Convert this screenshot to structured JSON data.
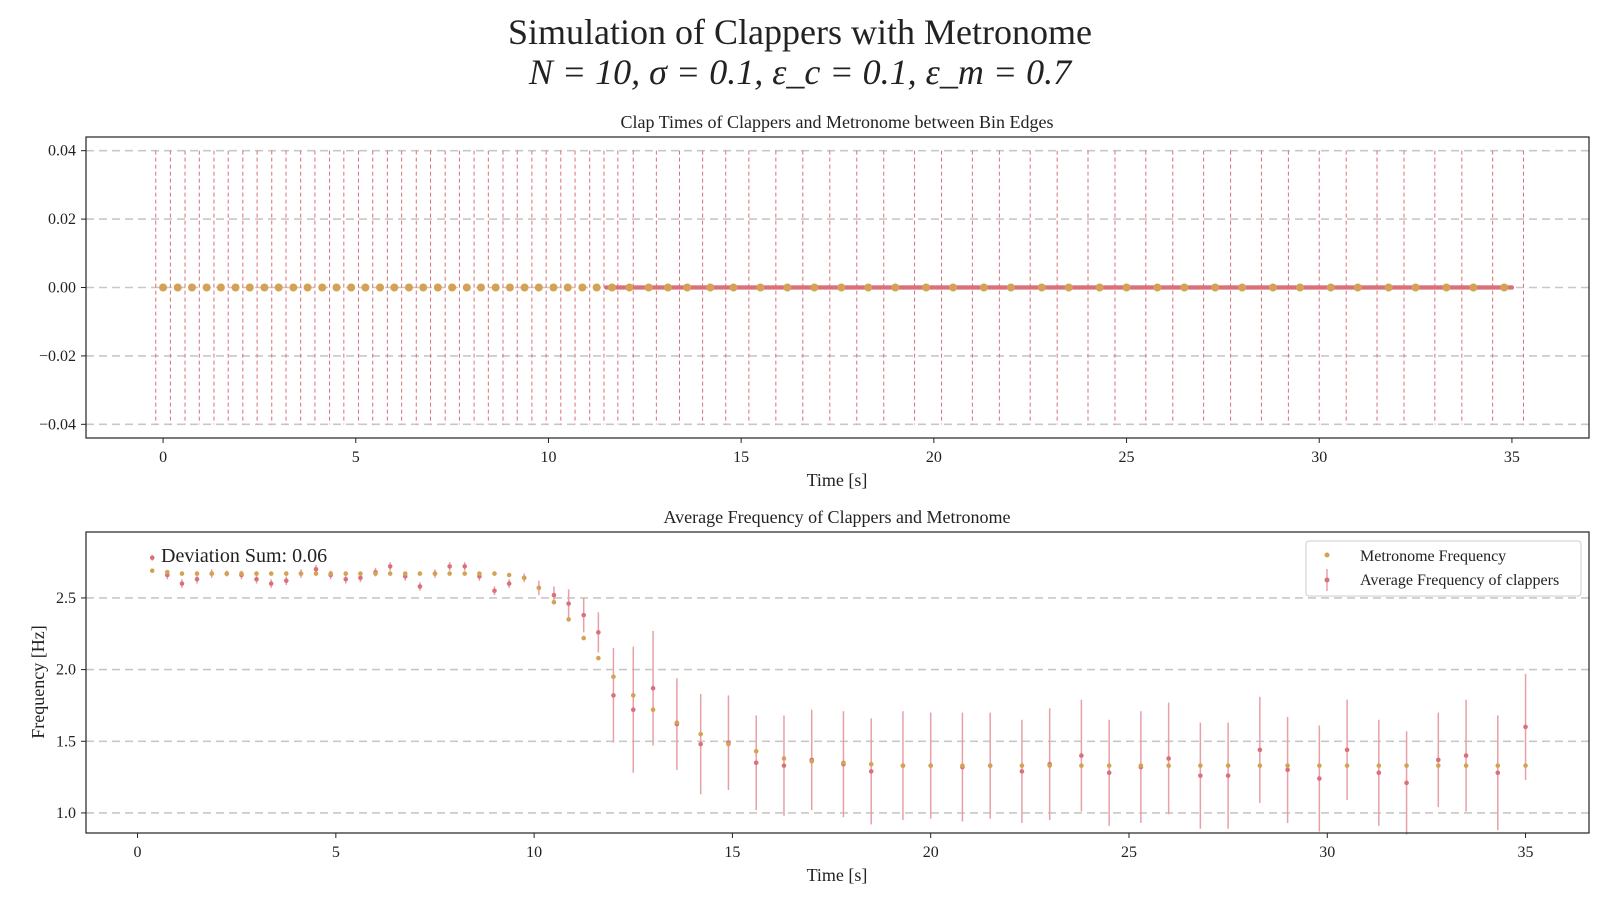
{
  "figure": {
    "title_line1": "Simulation of Clappers with Metronome",
    "title_line2": "N = 10, σ = 0.1, ε_c = 0.1, ε_m = 0.7"
  },
  "colors": {
    "metronome": "#d4a254",
    "clappers": "#d9707a",
    "bin_edge": "#d9707a",
    "grid": "#c8c8c8",
    "axis": "#222222"
  },
  "chart_data": [
    {
      "type": "scatter",
      "title": "Clap Times of Clappers and Metronome between Bin Edges",
      "xlabel": "Time [s]",
      "ylabel": "",
      "xlim": [
        -2,
        37
      ],
      "ylim": [
        -0.044,
        0.044
      ],
      "xticks": [
        0,
        5,
        10,
        15,
        20,
        25,
        30,
        35
      ],
      "yticks": [
        -0.04,
        -0.02,
        0.0,
        0.02,
        0.04
      ],
      "ytick_labels": [
        "−0.04",
        "−0.02",
        "0.00",
        "0.02",
        "0.04"
      ],
      "grid": "y-dashed",
      "bin_edges": [
        -0.19,
        0.19,
        0.57,
        0.94,
        1.32,
        1.69,
        2.07,
        2.44,
        2.82,
        3.19,
        3.57,
        3.94,
        4.32,
        4.69,
        5.07,
        5.44,
        5.82,
        6.19,
        6.57,
        6.94,
        7.32,
        7.69,
        8.07,
        8.44,
        8.82,
        9.19,
        9.57,
        9.94,
        10.32,
        10.69,
        11.07,
        11.44,
        11.8,
        12.2,
        12.8,
        13.4,
        14.0,
        14.6,
        15.2,
        15.9,
        16.6,
        17.3,
        18.0,
        18.7,
        19.5,
        20.2,
        21.0,
        21.7,
        22.5,
        23.2,
        24.0,
        24.7,
        25.5,
        26.2,
        27.0,
        27.7,
        28.5,
        29.2,
        30.0,
        30.7,
        31.5,
        32.2,
        33.0,
        33.7,
        34.5,
        35.3
      ],
      "series": [
        {
          "role": "metronome",
          "y": 0,
          "x": [
            0,
            0.38,
            0.75,
            1.13,
            1.5,
            1.88,
            2.25,
            2.63,
            3.0,
            3.38,
            3.75,
            4.13,
            4.5,
            4.88,
            5.25,
            5.63,
            6.0,
            6.38,
            6.75,
            7.13,
            7.5,
            7.88,
            8.25,
            8.63,
            9.0,
            9.38,
            9.75,
            10.13,
            10.5,
            10.88,
            11.25,
            11.65,
            12.1,
            12.6,
            13.1,
            13.6,
            14.2,
            14.8,
            15.5,
            16.2,
            16.9,
            17.6,
            18.3,
            19.0,
            19.8,
            20.5,
            21.3,
            22.0,
            22.8,
            23.5,
            24.3,
            25.0,
            25.8,
            26.5,
            27.3,
            28.0,
            28.8,
            29.5,
            30.3,
            31.0,
            31.8,
            32.5,
            33.3,
            34.0,
            34.8
          ]
        },
        {
          "role": "clappers",
          "y": 0,
          "x_range": [
            11.5,
            35.0
          ],
          "note_count": 470
        }
      ]
    },
    {
      "type": "errorbar",
      "title": "Average Frequency of Clappers and Metronome",
      "xlabel": "Time [s]",
      "ylabel": "Frequency [Hz]",
      "xlim": [
        -1.3,
        36.6
      ],
      "ylim": [
        0.86,
        2.96
      ],
      "xticks": [
        0,
        5,
        10,
        15,
        20,
        25,
        30,
        35
      ],
      "yticks": [
        1.0,
        1.5,
        2.0,
        2.5
      ],
      "ytick_labels": [
        "1.0",
        "1.5",
        "2.0",
        "2.5"
      ],
      "grid": "y-dashed",
      "legend_position": "top-right",
      "annotation": "Deviation Sum: 0.06",
      "x": [
        0.37,
        0.75,
        1.12,
        1.5,
        1.87,
        2.25,
        2.62,
        3.0,
        3.37,
        3.75,
        4.12,
        4.5,
        4.87,
        5.25,
        5.62,
        6.0,
        6.37,
        6.75,
        7.12,
        7.5,
        7.87,
        8.25,
        8.62,
        9.0,
        9.37,
        9.75,
        10.12,
        10.5,
        10.87,
        11.25,
        11.62,
        12.0,
        12.5,
        13.0,
        13.6,
        14.2,
        14.9,
        15.6,
        16.3,
        17.0,
        17.8,
        18.5,
        19.3,
        20.0,
        20.8,
        21.5,
        22.3,
        23.0,
        23.8,
        24.5,
        25.3,
        26.0,
        26.8,
        27.5,
        28.3,
        29.0,
        29.8,
        30.5,
        31.3,
        32.0,
        32.8,
        33.5,
        34.3,
        35.0
      ],
      "series": [
        {
          "name": "Metronome Frequency",
          "values": [
            2.69,
            2.68,
            2.67,
            2.67,
            2.67,
            2.67,
            2.67,
            2.67,
            2.67,
            2.67,
            2.67,
            2.67,
            2.67,
            2.67,
            2.67,
            2.67,
            2.67,
            2.67,
            2.67,
            2.67,
            2.67,
            2.67,
            2.67,
            2.67,
            2.66,
            2.64,
            2.57,
            2.47,
            2.35,
            2.22,
            2.08,
            1.95,
            1.82,
            1.72,
            1.63,
            1.55,
            1.48,
            1.43,
            1.38,
            1.36,
            1.35,
            1.34,
            1.33,
            1.33,
            1.33,
            1.33,
            1.33,
            1.33,
            1.33,
            1.33,
            1.33,
            1.33,
            1.33,
            1.33,
            1.33,
            1.33,
            1.33,
            1.33,
            1.33,
            1.33,
            1.33,
            1.33,
            1.33,
            1.33
          ]
        },
        {
          "name": "Average Frequency of clappers",
          "values": [
            2.78,
            2.66,
            2.6,
            2.63,
            2.67,
            2.67,
            2.66,
            2.63,
            2.6,
            2.62,
            2.67,
            2.7,
            2.66,
            2.63,
            2.64,
            2.68,
            2.72,
            2.65,
            2.58,
            2.67,
            2.72,
            2.72,
            2.65,
            2.55,
            2.6,
            2.64,
            2.57,
            2.52,
            2.46,
            2.38,
            2.26,
            1.82,
            1.72,
            1.87,
            1.62,
            1.48,
            1.49,
            1.35,
            1.33,
            1.37,
            1.34,
            1.29,
            1.33,
            1.33,
            1.32,
            1.33,
            1.29,
            1.34,
            1.4,
            1.28,
            1.32,
            1.38,
            1.26,
            1.26,
            1.44,
            1.3,
            1.24,
            1.44,
            1.28,
            1.21,
            1.37,
            1.4,
            1.28,
            1.6
          ],
          "yerr": [
            0.02,
            0.03,
            0.03,
            0.03,
            0.03,
            0.02,
            0.03,
            0.03,
            0.03,
            0.03,
            0.03,
            0.03,
            0.03,
            0.03,
            0.03,
            0.03,
            0.03,
            0.03,
            0.03,
            0.03,
            0.03,
            0.03,
            0.03,
            0.03,
            0.03,
            0.03,
            0.05,
            0.06,
            0.1,
            0.12,
            0.14,
            0.33,
            0.44,
            0.4,
            0.32,
            0.35,
            0.33,
            0.33,
            0.35,
            0.35,
            0.37,
            0.37,
            0.38,
            0.37,
            0.38,
            0.37,
            0.36,
            0.39,
            0.39,
            0.37,
            0.39,
            0.39,
            0.37,
            0.37,
            0.37,
            0.37,
            0.37,
            0.35,
            0.37,
            0.36,
            0.33,
            0.39,
            0.4,
            0.37
          ]
        }
      ]
    }
  ]
}
